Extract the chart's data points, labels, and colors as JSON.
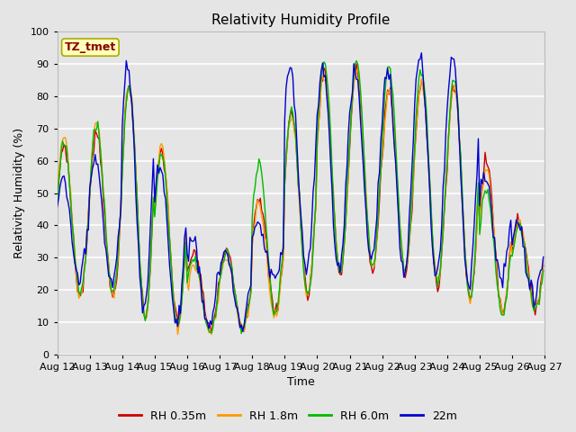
{
  "title": "Relativity Humidity Profile",
  "xlabel": "Time",
  "ylabel": "Relativity Humidity (%)",
  "ylim": [
    0,
    100
  ],
  "yticks": [
    0,
    10,
    20,
    30,
    40,
    50,
    60,
    70,
    80,
    90,
    100
  ],
  "xtick_labels": [
    "Aug 12",
    "Aug 13",
    "Aug 14",
    "Aug 15",
    "Aug 16",
    "Aug 17",
    "Aug 18",
    "Aug 19",
    "Aug 20",
    "Aug 21",
    "Aug 22",
    "Aug 23",
    "Aug 24",
    "Aug 25",
    "Aug 26",
    "Aug 27"
  ],
  "legend_labels": [
    "RH 0.35m",
    "RH 1.8m",
    "RH 6.0m",
    "22m"
  ],
  "line_colors": [
    "#cc0000",
    "#ff9900",
    "#00bb00",
    "#0000cc"
  ],
  "annotation_text": "TZ_tmet",
  "annotation_color": "#880000",
  "annotation_bg": "#ffffbb",
  "annotation_edge": "#aaaa00",
  "background_color": "#e5e5e5",
  "plot_bg_color": "#e5e5e5",
  "grid_color": "#ffffff",
  "title_fontsize": 11,
  "axis_fontsize": 9,
  "tick_fontsize": 8
}
